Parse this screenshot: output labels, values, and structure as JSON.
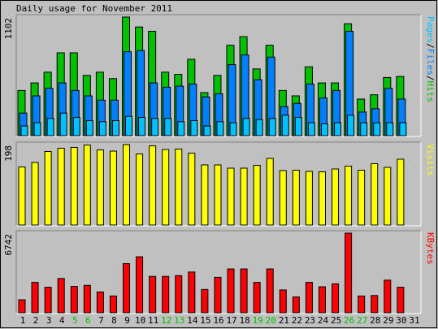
{
  "chart_data": {
    "type": "bar",
    "title": "Daily usage for November 2011",
    "categories": [
      "1",
      "2",
      "3",
      "4",
      "5",
      "6",
      "7",
      "8",
      "9",
      "10",
      "11",
      "12",
      "13",
      "14",
      "15",
      "16",
      "17",
      "18",
      "19",
      "20",
      "21",
      "22",
      "23",
      "24",
      "25",
      "26",
      "27",
      "28",
      "29",
      "30",
      "31"
    ],
    "weekend_days": [
      "5",
      "6",
      "12",
      "13",
      "19",
      "20",
      "26",
      "27"
    ],
    "colors": {
      "hits": "#00c000",
      "files": "#0080ff",
      "pages": "#00c0ff",
      "visits": "#ffff00",
      "kbytes": "#ff0000",
      "weekday_label": "#000000",
      "weekend_label": "#00c000"
    },
    "panels": [
      {
        "key": "hits_files_pages",
        "max_label": "1102",
        "ymax": 1102,
        "side_label": [
          {
            "text": "Pages",
            "color": "#00c0ff"
          },
          {
            "text": "/",
            "color": "#000000"
          },
          {
            "text": "Files",
            "color": "#0080ff"
          },
          {
            "text": "/",
            "color": "#000000"
          },
          {
            "text": "Hits",
            "color": "#00c000"
          }
        ],
        "series": [
          {
            "name": "Hits",
            "color": "#00c000",
            "values": [
              420,
              490,
              590,
              770,
              770,
              560,
              590,
              530,
              1102,
              1010,
              970,
              590,
              570,
              710,
              400,
              560,
              840,
              920,
              620,
              840,
              420,
              370,
              640,
              490,
              490,
              1040,
              340,
              380,
              540,
              550,
              null
            ]
          },
          {
            "name": "Files",
            "color": "#0080ff",
            "values": [
              210,
              370,
              440,
              490,
              420,
              370,
              330,
              330,
              780,
              790,
              490,
              450,
              460,
              480,
              360,
              390,
              660,
              750,
              520,
              730,
              270,
              300,
              480,
              350,
              420,
              970,
              220,
              250,
              440,
              340,
              null
            ]
          },
          {
            "name": "Pages",
            "color": "#00c0ff",
            "values": [
              90,
              120,
              160,
              210,
              170,
              140,
              130,
              140,
              180,
              170,
              160,
              160,
              130,
              140,
              90,
              130,
              120,
              160,
              150,
              160,
              190,
              170,
              120,
              110,
              120,
              190,
              120,
              120,
              120,
              120,
              null
            ]
          }
        ]
      },
      {
        "key": "visits",
        "max_label": "198",
        "ymax": 198,
        "side_label": [
          {
            "text": "Visits",
            "color": "#ffff00"
          }
        ],
        "series": [
          {
            "name": "Visits",
            "color": "#ffff00",
            "values": [
              143,
              154,
              181,
              189,
              191,
              197,
              185,
              182,
              198,
              175,
              195,
              186,
              187,
              177,
              148,
              148,
              140,
              140,
              147,
              164,
              134,
              135,
              132,
              131,
              138,
              145,
              135,
              151,
              142,
              162,
              null
            ]
          }
        ]
      },
      {
        "key": "kbytes",
        "max_label": "6742",
        "ymax": 6742,
        "side_label": [
          {
            "text": "KBytes",
            "color": "#ff0000"
          }
        ],
        "series": [
          {
            "name": "KBytes",
            "color": "#ff0000",
            "values": [
              1100,
              2570,
              2160,
              2900,
              2230,
              2320,
              1760,
              1420,
              4160,
              4740,
              3080,
              3080,
              3140,
              3450,
              1970,
              3000,
              3710,
              3710,
              2570,
              3710,
              1930,
              1340,
              2570,
              2200,
              2450,
              6742,
              1420,
              1460,
              2760,
              2160,
              null
            ]
          }
        ]
      }
    ]
  }
}
